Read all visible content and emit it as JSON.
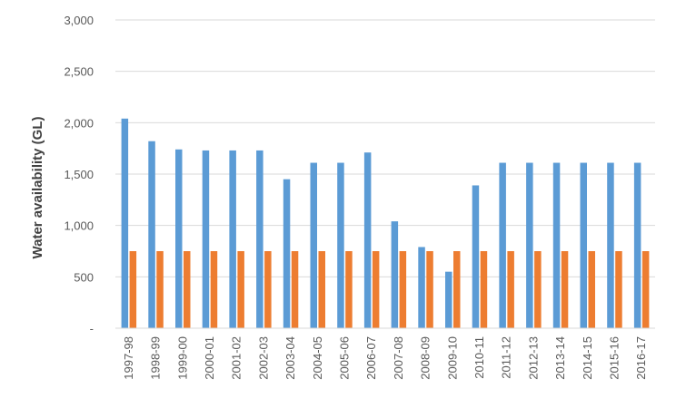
{
  "chart_data": {
    "type": "bar",
    "title": "",
    "xlabel": "",
    "ylabel": "Water availability (GL)",
    "ylim": [
      0,
      3000
    ],
    "yticks": [
      0,
      500,
      1000,
      1500,
      2000,
      2500,
      3000
    ],
    "ytick_labels": [
      "-",
      "500",
      "1,000",
      "1,500",
      "2,000",
      "2,500",
      "3,000"
    ],
    "grid": true,
    "legend": "none",
    "categories": [
      "1997-98",
      "1998-99",
      "1999-00",
      "2000-01",
      "2001-02",
      "2002-03",
      "2003-04",
      "2004-05",
      "2005-06",
      "2006-07",
      "2007-08",
      "2008-09",
      "2009-10",
      "2010-11",
      "2011-12",
      "2012-13",
      "2013-14",
      "2014-15",
      "2015-16",
      "2016-17"
    ],
    "series": [
      {
        "color": "#5b9bd5",
        "values": [
          2040,
          1820,
          1740,
          1730,
          1730,
          1730,
          1450,
          1610,
          1610,
          1710,
          1040,
          790,
          550,
          1390,
          1610,
          1610,
          1610,
          1610,
          1610,
          1610
        ]
      },
      {
        "color": "#ed7d31",
        "values": [
          750,
          750,
          750,
          750,
          750,
          750,
          750,
          750,
          750,
          750,
          750,
          750,
          750,
          750,
          750,
          750,
          750,
          750,
          750,
          750
        ]
      }
    ]
  }
}
